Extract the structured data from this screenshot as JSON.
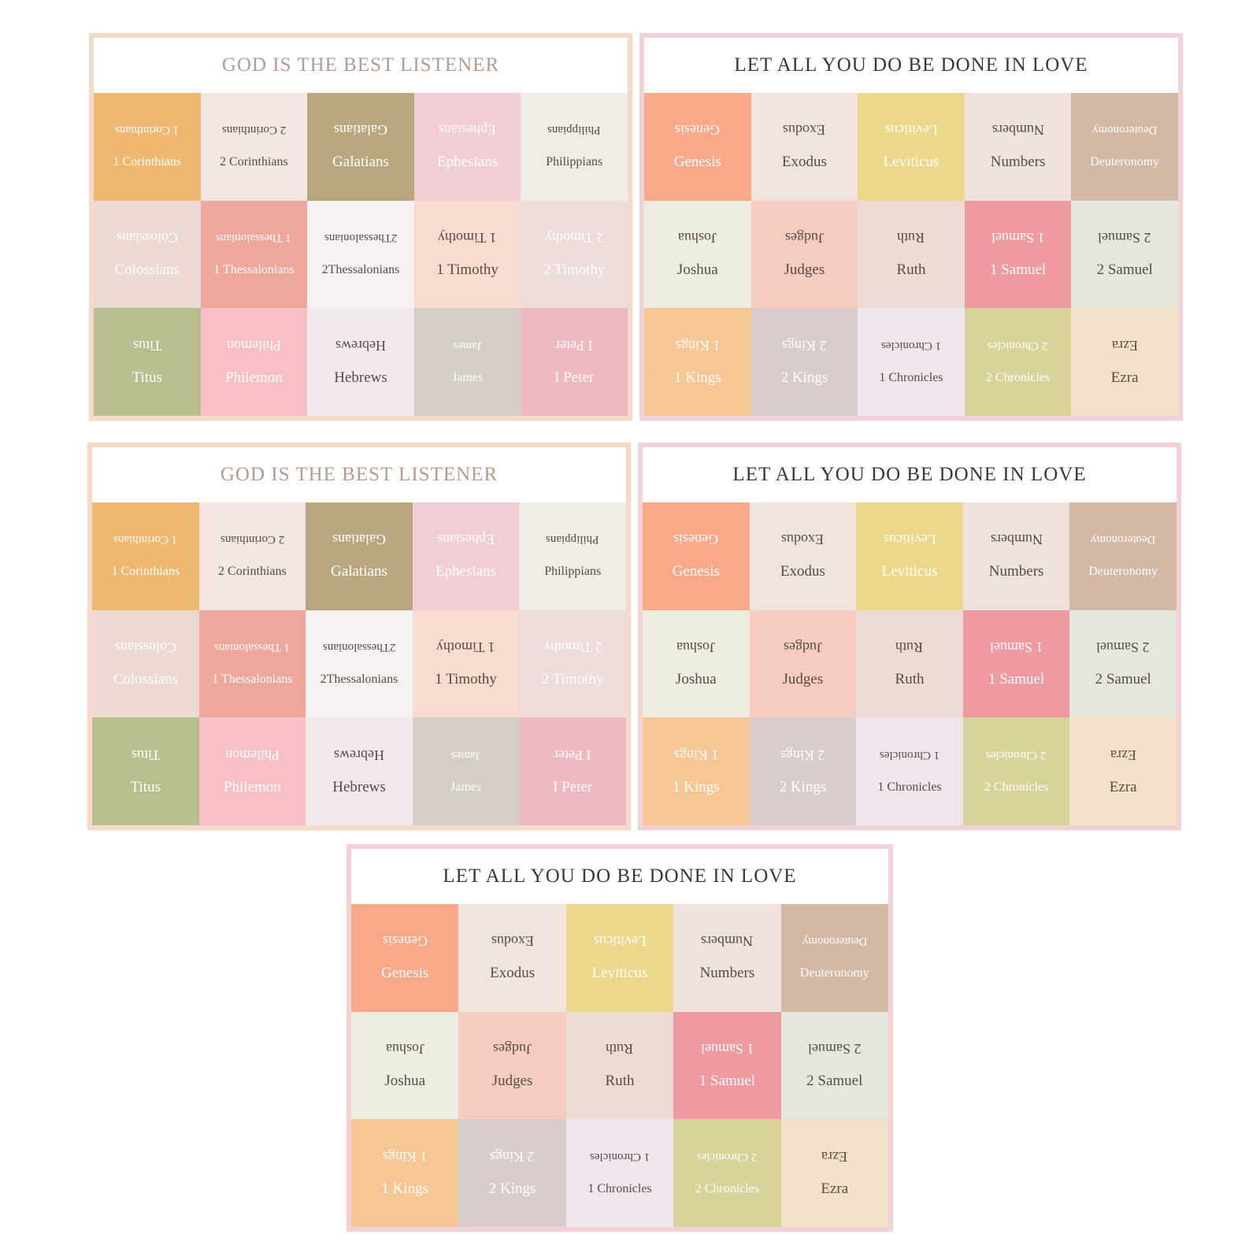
{
  "sheets": [
    {
      "id": "sheet-1",
      "title": "GOD IS THE BEST LISTENER",
      "title_color": "#b59a8f",
      "frame": "peach",
      "tabs": [
        {
          "label": "1 Corinthians",
          "bg": "#eeb870",
          "fg": "#ffffff",
          "small": true
        },
        {
          "label": "2 Corinthians",
          "bg": "#f4e6e2",
          "fg": "#5a4a44",
          "small": true
        },
        {
          "label": "Galatians",
          "bg": "#b9a77f",
          "fg": "#ffffff"
        },
        {
          "label": "Ephesians",
          "bg": "#f2cdd3",
          "fg": "#ffffff"
        },
        {
          "label": "Philippians",
          "bg": "#f0ede6",
          "fg": "#5a4a44",
          "small": true
        },
        {
          "label": "Colossians",
          "bg": "#ecd9d3",
          "fg": "#ffffff"
        },
        {
          "label": "1 Thessalonians",
          "bg": "#efa79b",
          "fg": "#ffffff",
          "small": true
        },
        {
          "label": "2Thessalonians",
          "bg": "#f6f2f1",
          "fg": "#5a4a44",
          "small": true
        },
        {
          "label": "1 Timothy",
          "bg": "#f8dcd0",
          "fg": "#5a4a44"
        },
        {
          "label": "2 Timothy",
          "bg": "#eedcdb",
          "fg": "#ffffff"
        },
        {
          "label": "Titus",
          "bg": "#b9be8f",
          "fg": "#ffffff"
        },
        {
          "label": "Philemon",
          "bg": "#f7bfc6",
          "fg": "#ffffff"
        },
        {
          "label": "Hebrews",
          "bg": "#f1e9ec",
          "fg": "#5a4a44"
        },
        {
          "label": "James",
          "bg": "#d5cec7",
          "fg": "#ffffff",
          "small": true
        },
        {
          "label": "I Peter",
          "bg": "#efb9c1",
          "fg": "#ffffff"
        }
      ]
    },
    {
      "id": "sheet-2",
      "title": "LET ALL YOU DO BE DONE IN LOVE",
      "title_color": "#3f3632",
      "frame": "pink",
      "tabs": [
        {
          "label": "Genesis",
          "bg": "#f7a98a",
          "fg": "#ffffff"
        },
        {
          "label": "Exodus",
          "bg": "#f1e4df",
          "fg": "#5a4a44"
        },
        {
          "label": "Leviticus",
          "bg": "#ecd88a",
          "fg": "#ffffff"
        },
        {
          "label": "Numbers",
          "bg": "#efe1dc",
          "fg": "#5a4a44"
        },
        {
          "label": "Deuteronomy",
          "bg": "#d2b8a5",
          "fg": "#ffffff",
          "small": true
        },
        {
          "label": "Joshua",
          "bg": "#eeede1",
          "fg": "#5a4a44"
        },
        {
          "label": "Judges",
          "bg": "#f6ccc1",
          "fg": "#5a4a44"
        },
        {
          "label": "Ruth",
          "bg": "#eddcd5",
          "fg": "#5a4a44"
        },
        {
          "label": "1 Samuel",
          "bg": "#ee9aa0",
          "fg": "#ffffff"
        },
        {
          "label": "2 Samuel",
          "bg": "#e5e7dc",
          "fg": "#5a4a44"
        },
        {
          "label": "1 Kings",
          "bg": "#f6c694",
          "fg": "#ffffff"
        },
        {
          "label": "2 Kings",
          "bg": "#d9cdcc",
          "fg": "#ffffff"
        },
        {
          "label": "1 Chronicles",
          "bg": "#f1e6ee",
          "fg": "#5a4a44",
          "small": true
        },
        {
          "label": "2 Chronicles",
          "bg": "#d8d39a",
          "fg": "#ffffff",
          "small": true
        },
        {
          "label": "Ezra",
          "bg": "#f2e2cb",
          "fg": "#5a4a44"
        }
      ]
    },
    {
      "id": "sheet-3",
      "title": "GOD IS THE BEST LISTENER",
      "title_color": "#b59a8f",
      "frame": "peach",
      "tabs": [
        {
          "label": "1 Corinthians",
          "bg": "#eeb870",
          "fg": "#ffffff",
          "small": true
        },
        {
          "label": "2 Corinthians",
          "bg": "#f4e6e2",
          "fg": "#5a4a44",
          "small": true
        },
        {
          "label": "Galatians",
          "bg": "#b9a77f",
          "fg": "#ffffff"
        },
        {
          "label": "Ephesians",
          "bg": "#f2cdd3",
          "fg": "#ffffff"
        },
        {
          "label": "Philippians",
          "bg": "#f0ede6",
          "fg": "#5a4a44",
          "small": true
        },
        {
          "label": "Colossians",
          "bg": "#ecd9d3",
          "fg": "#ffffff"
        },
        {
          "label": "1 Thessalonians",
          "bg": "#efa79b",
          "fg": "#ffffff",
          "small": true
        },
        {
          "label": "2Thessalonians",
          "bg": "#f6f2f1",
          "fg": "#5a4a44",
          "small": true
        },
        {
          "label": "1 Timothy",
          "bg": "#f8dcd0",
          "fg": "#5a4a44"
        },
        {
          "label": "2 Timothy",
          "bg": "#eedcdb",
          "fg": "#ffffff"
        },
        {
          "label": "Titus",
          "bg": "#b9be8f",
          "fg": "#ffffff"
        },
        {
          "label": "Philemon",
          "bg": "#f7bfc6",
          "fg": "#ffffff"
        },
        {
          "label": "Hebrews",
          "bg": "#f1e9ec",
          "fg": "#5a4a44"
        },
        {
          "label": "James",
          "bg": "#d5cec7",
          "fg": "#ffffff",
          "small": true
        },
        {
          "label": "I Peter",
          "bg": "#efb9c1",
          "fg": "#ffffff"
        }
      ]
    },
    {
      "id": "sheet-4",
      "title": "LET ALL YOU DO BE DONE IN LOVE",
      "title_color": "#3f3632",
      "frame": "pink",
      "tabs": [
        {
          "label": "Genesis",
          "bg": "#f7a98a",
          "fg": "#ffffff"
        },
        {
          "label": "Exodus",
          "bg": "#f1e4df",
          "fg": "#5a4a44"
        },
        {
          "label": "Leviticus",
          "bg": "#ecd88a",
          "fg": "#ffffff"
        },
        {
          "label": "Numbers",
          "bg": "#efe1dc",
          "fg": "#5a4a44"
        },
        {
          "label": "Deuteronomy",
          "bg": "#d2b8a5",
          "fg": "#ffffff",
          "small": true
        },
        {
          "label": "Joshua",
          "bg": "#eeede1",
          "fg": "#5a4a44"
        },
        {
          "label": "Judges",
          "bg": "#f6ccc1",
          "fg": "#5a4a44"
        },
        {
          "label": "Ruth",
          "bg": "#eddcd5",
          "fg": "#5a4a44"
        },
        {
          "label": "1 Samuel",
          "bg": "#ee9aa0",
          "fg": "#ffffff"
        },
        {
          "label": "2 Samuel",
          "bg": "#e5e7dc",
          "fg": "#5a4a44"
        },
        {
          "label": "1 Kings",
          "bg": "#f6c694",
          "fg": "#ffffff"
        },
        {
          "label": "2 Kings",
          "bg": "#d9cdcc",
          "fg": "#ffffff"
        },
        {
          "label": "1 Chronicles",
          "bg": "#f1e6ee",
          "fg": "#5a4a44",
          "small": true
        },
        {
          "label": "2 Chronicles",
          "bg": "#d8d39a",
          "fg": "#ffffff",
          "small": true
        },
        {
          "label": "Ezra",
          "bg": "#f2e2cb",
          "fg": "#5a4a44"
        }
      ]
    },
    {
      "id": "sheet-5",
      "title": "LET ALL YOU DO BE DONE IN LOVE",
      "title_color": "#3f3632",
      "frame": "pink",
      "tabs": [
        {
          "label": "Genesis",
          "bg": "#f7a98a",
          "fg": "#ffffff"
        },
        {
          "label": "Exodus",
          "bg": "#f1e4df",
          "fg": "#5a4a44"
        },
        {
          "label": "Leviticus",
          "bg": "#ecd88a",
          "fg": "#ffffff"
        },
        {
          "label": "Numbers",
          "bg": "#efe1dc",
          "fg": "#5a4a44"
        },
        {
          "label": "Deuteronomy",
          "bg": "#d2b8a5",
          "fg": "#ffffff",
          "small": true
        },
        {
          "label": "Joshua",
          "bg": "#eeede1",
          "fg": "#5a4a44"
        },
        {
          "label": "Judges",
          "bg": "#f6ccc1",
          "fg": "#5a4a44"
        },
        {
          "label": "Ruth",
          "bg": "#eddcd5",
          "fg": "#5a4a44"
        },
        {
          "label": "1 Samuel",
          "bg": "#ee9aa0",
          "fg": "#ffffff"
        },
        {
          "label": "2 Samuel",
          "bg": "#e5e7dc",
          "fg": "#5a4a44"
        },
        {
          "label": "1 Kings",
          "bg": "#f6c694",
          "fg": "#ffffff"
        },
        {
          "label": "2 Kings",
          "bg": "#d9cdcc",
          "fg": "#ffffff"
        },
        {
          "label": "1 Chronicles",
          "bg": "#f1e6ee",
          "fg": "#5a4a44",
          "small": true
        },
        {
          "label": "2 Chronicles",
          "bg": "#d8d39a",
          "fg": "#ffffff",
          "small": true
        },
        {
          "label": "Ezra",
          "bg": "#f2e2cb",
          "fg": "#5a4a44"
        }
      ]
    }
  ]
}
